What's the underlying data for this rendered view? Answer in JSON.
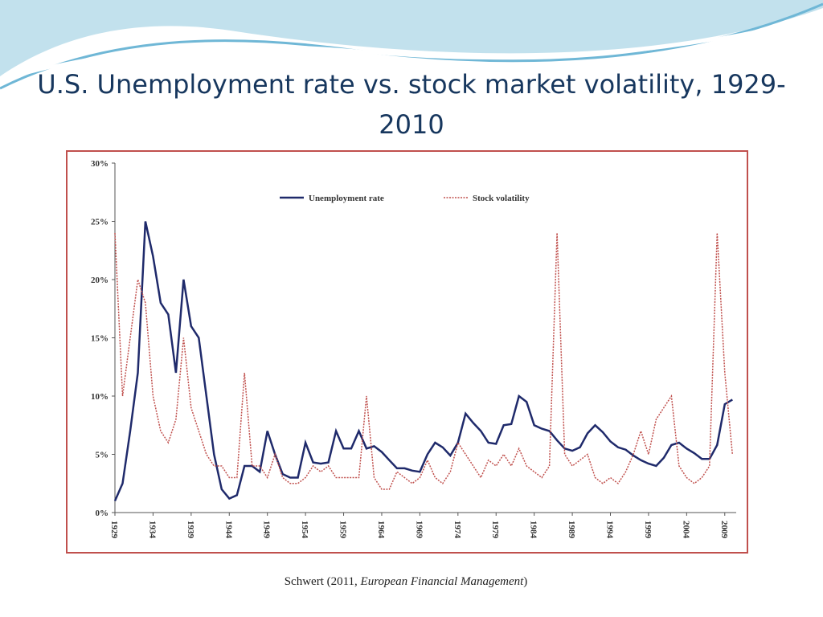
{
  "chart_data": {
    "type": "line",
    "title": "U.S. Unemployment rate vs. stock market volatility, 1929-2010",
    "source_parts": [
      "Schwert (2011, ",
      "European Financial Management",
      ")"
    ],
    "x": [
      1929,
      1930,
      1931,
      1932,
      1933,
      1934,
      1935,
      1936,
      1937,
      1938,
      1939,
      1940,
      1941,
      1942,
      1943,
      1944,
      1945,
      1946,
      1947,
      1948,
      1949,
      1950,
      1951,
      1952,
      1953,
      1954,
      1955,
      1956,
      1957,
      1958,
      1959,
      1960,
      1961,
      1962,
      1963,
      1964,
      1965,
      1966,
      1967,
      1968,
      1969,
      1970,
      1971,
      1972,
      1973,
      1974,
      1975,
      1976,
      1977,
      1978,
      1979,
      1980,
      1981,
      1982,
      1983,
      1984,
      1985,
      1986,
      1987,
      1988,
      1989,
      1990,
      1991,
      1992,
      1993,
      1994,
      1995,
      1996,
      1997,
      1998,
      1999,
      2000,
      2001,
      2002,
      2003,
      2004,
      2005,
      2006,
      2007,
      2008,
      2009,
      2010
    ],
    "series": [
      {
        "name": "Unemployment rate",
        "color": "#1f2a6b",
        "dash": false,
        "values": [
          1,
          2.5,
          7,
          12,
          25,
          22,
          18,
          17,
          12,
          20,
          16,
          15,
          10,
          5,
          2,
          1.2,
          1.5,
          4,
          4,
          3.5,
          7,
          5,
          3.3,
          3,
          3,
          6,
          4.3,
          4.2,
          4.3,
          7,
          5.5,
          5.5,
          7,
          5.5,
          5.7,
          5.2,
          4.5,
          3.8,
          3.8,
          3.6,
          3.5,
          5,
          6,
          5.6,
          4.9,
          6,
          8.5,
          7.7,
          7,
          6,
          5.9,
          7.5,
          7.6,
          10,
          9.5,
          7.5,
          7.2,
          7,
          6.2,
          5.5,
          5.3,
          5.6,
          6.8,
          7.5,
          6.9,
          6.1,
          5.6,
          5.4,
          4.9,
          4.5,
          4.2,
          4,
          4.7,
          5.8,
          6,
          5.5,
          5.1,
          4.6,
          4.6,
          5.8,
          9.3,
          9.7
        ]
      },
      {
        "name": "Stock volatility",
        "color": "#c0504d",
        "dash": true,
        "values": [
          24,
          10,
          15,
          20,
          18,
          10,
          7,
          6,
          8,
          15,
          9,
          7,
          5,
          4,
          4,
          3,
          3,
          12,
          4,
          4,
          3,
          5,
          3,
          2.5,
          2.5,
          3,
          4,
          3.5,
          4,
          3,
          3,
          3,
          3,
          10,
          3,
          2,
          2,
          3.5,
          3,
          2.5,
          3,
          4.5,
          3,
          2.5,
          3.5,
          6,
          5,
          4,
          3,
          4.5,
          4,
          5,
          4,
          5.5,
          4,
          3.5,
          3,
          4,
          24,
          5,
          4,
          4.5,
          5,
          3,
          2.5,
          3,
          2.5,
          3.5,
          5,
          7,
          5,
          8,
          9,
          10,
          4,
          3,
          2.5,
          3,
          4,
          24,
          12,
          5
        ]
      }
    ],
    "xlim": [
      1929,
      2010.5
    ],
    "xticks": [
      1929,
      1934,
      1939,
      1944,
      1949,
      1954,
      1959,
      1964,
      1969,
      1974,
      1979,
      1984,
      1989,
      1994,
      1999,
      2004,
      2009
    ],
    "ylim": [
      0,
      30
    ],
    "yticks": [
      {
        "value": 0,
        "label": "0%"
      },
      {
        "value": 5,
        "label": "5%"
      },
      {
        "value": 10,
        "label": "10%"
      },
      {
        "value": 15,
        "label": "15%"
      },
      {
        "value": 20,
        "label": "20%"
      },
      {
        "value": 25,
        "label": "25%"
      },
      {
        "value": 30,
        "label": "30%"
      }
    ]
  }
}
